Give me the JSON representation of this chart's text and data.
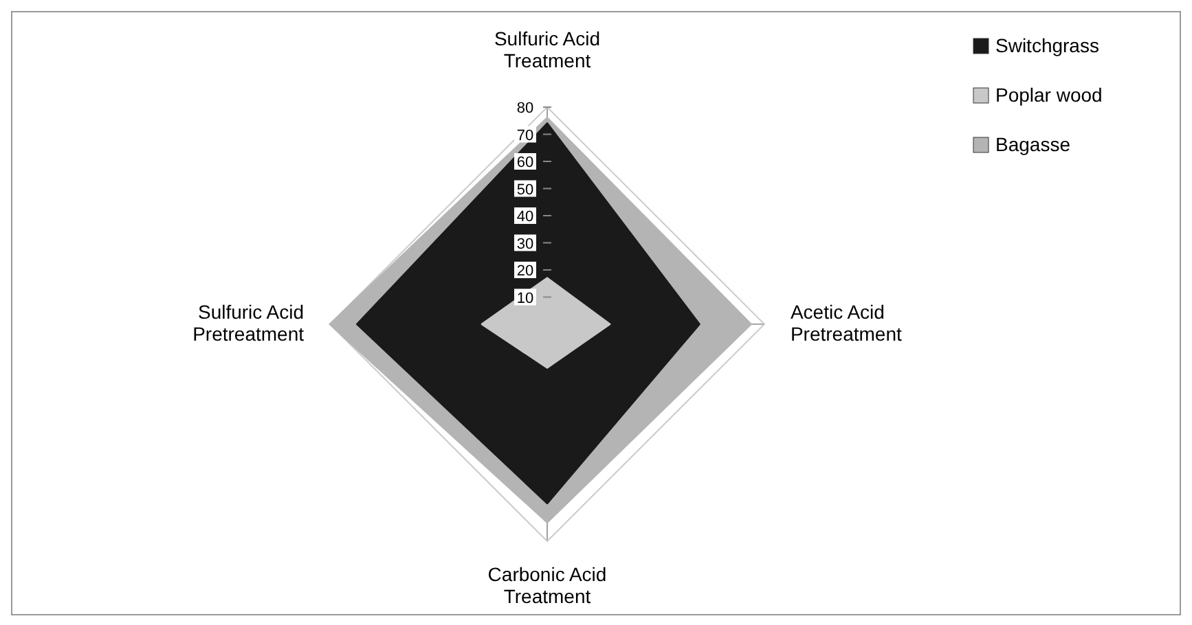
{
  "chart_data": {
    "type": "radar",
    "categories": [
      "Sulfuric Acid Treatment",
      "Acetic Acid Pretreatment",
      "Carbonic Acid Treatment",
      "Sulfuric Acid Pretreatment"
    ],
    "series": [
      {
        "name": "Switchgrass",
        "color": "#1a1a1a",
        "values": [
          74,
          56,
          66,
          70
        ]
      },
      {
        "name": "Poplar wood",
        "color": "#c8c8c8",
        "values": [
          17,
          23,
          16,
          24
        ]
      },
      {
        "name": "Bagasse",
        "color": "#b4b4b4",
        "values": [
          76,
          75,
          73,
          80
        ]
      }
    ],
    "ylim": [
      0,
      80
    ],
    "yticks": [
      10,
      20,
      30,
      40,
      50,
      60,
      70,
      80
    ],
    "legend": "top right",
    "grid": true
  }
}
